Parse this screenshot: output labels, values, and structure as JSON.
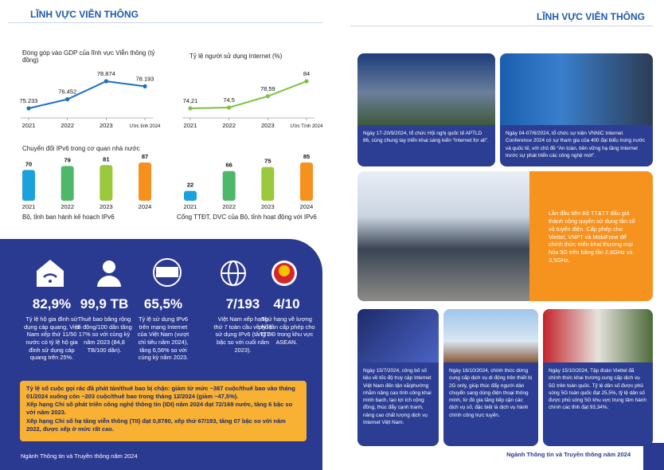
{
  "left_page": {
    "header": "LĨNH VỰC VIỄN THÔNG",
    "charts": [
      {
        "type": "line",
        "title": "Đóng góp vào GDP của lĩnh vực Viễn thông (tỷ đồng)",
        "categories": [
          "2021",
          "2022",
          "2023",
          "Ước tính 2024"
        ],
        "values": [
          75233,
          76452,
          78874,
          78193
        ],
        "value_labels": [
          "75.233",
          "76.452",
          "78.874",
          "78.193"
        ],
        "color": "#1f6fc1"
      },
      {
        "type": "line",
        "title": "Tỷ lệ người sử dụng Internet (%)",
        "categories": [
          "2021",
          "2022",
          "2023",
          "Ước Tính 2024"
        ],
        "values": [
          74.21,
          74.5,
          78.59,
          84
        ],
        "value_labels": [
          "74,21",
          "74,5",
          "78,59",
          "84"
        ],
        "color": "#7dc242"
      },
      {
        "type": "bar",
        "caption": "Bộ, tỉnh ban hành kế hoạch IPv6",
        "categories": [
          "2021",
          "2022",
          "2023",
          "2024"
        ],
        "values": [
          70,
          79,
          81,
          87
        ],
        "colors": [
          "#1ba1dc",
          "#4db86a",
          "#9bc93c",
          "#f6911e"
        ]
      },
      {
        "type": "bar",
        "caption": "Cổng TTĐT, DVC của Bộ, tỉnh hoạt động với IPv6",
        "categories": [
          "2021",
          "2022",
          "2023",
          "2024"
        ],
        "values": [
          22,
          66,
          75,
          85
        ],
        "colors": [
          "#1ba1dc",
          "#4db86a",
          "#9bc93c",
          "#f6911e"
        ]
      }
    ],
    "ipv6_section_title": "Chuyển đổi IPv6 trong cơ quan nhà nước",
    "stats": [
      {
        "value": "82,9%",
        "text": "Tỷ lệ hộ gia đình sử dụng cáp quang, Việt Nam xếp thứ 11/50 nước có tỷ lệ hộ gia đình sử dụng cáp quang trên 25%."
      },
      {
        "value": "99,9 TB",
        "text": "Thuê bao băng rộng di động/100 dân tăng 17% so với cùng kỳ năm 2023 (84,8 TB/100 dân)."
      },
      {
        "value": "65,5%",
        "text": "Tỷ lệ sử dụng IPv6 trên mạng Internet của Việt Nam (vượt chỉ tiêu năm 2024), tăng 6,56% so với cùng kỳ năm 2023."
      },
      {
        "value": "7/193",
        "text": "Việt Nam xếp hạng thứ 7 toàn cầu về tỷ lệ sử dụng IPv6 (tăng 2 bậc so với cuối năm 2023)."
      },
      {
        "value": "4/10",
        "text": "Thứ hạng về lượng phổ tần cấp phép cho TTDĐ trong khu vực ASEAN."
      }
    ],
    "highlights": [
      "Tỷ lệ số cuộc gọi rác đã phát tán/thuê bao bị chặn: giảm từ mức ~387 cuộc/thuê bao vào tháng 01/2024 xuống còn ~203 cuộc/thuê bao trong tháng 12/2024 (giảm ~47,5%).",
      "Xếp hạng Chỉ số phát triển công nghệ thông tin (IDI) năm 2024 đạt 72/169 nước, tăng 6 bậc so với năm 2023.",
      "Xếp hạng Chỉ số hạ tầng viễn thông (TII) đạt 0,8780, xếp thứ 67/193, tăng 07 bậc so với năm 2022, được xếp ở mức rất cao."
    ],
    "footer": "Ngành Thông tin và Truyền thông năm 2024"
  },
  "right_page": {
    "header": "LĨNH VỰC VIỄN THÔNG",
    "captions": [
      "Ngày 17-20/9/2024, tổ chức Hội nghị quốc tế APTLD 86, cùng chung tay triển khai sáng kiến “Internet for all”.",
      "Ngày 04-07/6/2024, tổ chức sự kiện VNNIC Internet Conference 2024 có sự tham gia của 400 đại biểu trong nước và quốc tế, với chủ đề “An toàn, bền vững hạ tầng Internet trước sự phát triển các công nghệ mới”.",
      "Lần đầu tiên Bộ TT&TT đấu giá thành công quyền sử dụng tần số vô tuyến điện. Cấp phép cho Viettel, VNPT và MobiFone để chính thức triển khai thương mại hóa 5G trên băng tần 2,6GHz và 3,5GHz.",
      "Ngày 15/7/2024, công bố số liệu về tốc độ truy cập Internet Việt Nam đến tận xã/phường nhằm nâng cao tính công khai minh bạch, tạo lợi ích cộng đồng, thúc đẩy cạnh tranh, nâng cao chất lượng dịch vụ Internet Việt Nam.",
      "Ngày 16/10/2024, chính thức dừng cung cấp dịch vụ di động trên thiết bị 2G only, giúp thúc đẩy người dân chuyển sang dùng điện thoại thông minh, từ đó gia tăng tiếp cận các dịch vụ số, đặc biệt là dịch vụ hành chính công trực tuyến.",
      "Ngày 15/10/2024, Tập đoàn Viettel đã chính thức khai trương cung cấp dịch vụ 5G trên toàn quốc. Tỷ lệ dân số được phủ sóng 5G toàn quốc đạt 25,5%, tỷ lệ dân số được phủ sóng 5G khu vực trung tâm hành chính các tỉnh đạt 93,34%."
    ],
    "footer": "Ngành Thông tin và Truyền thông năm 2024"
  }
}
